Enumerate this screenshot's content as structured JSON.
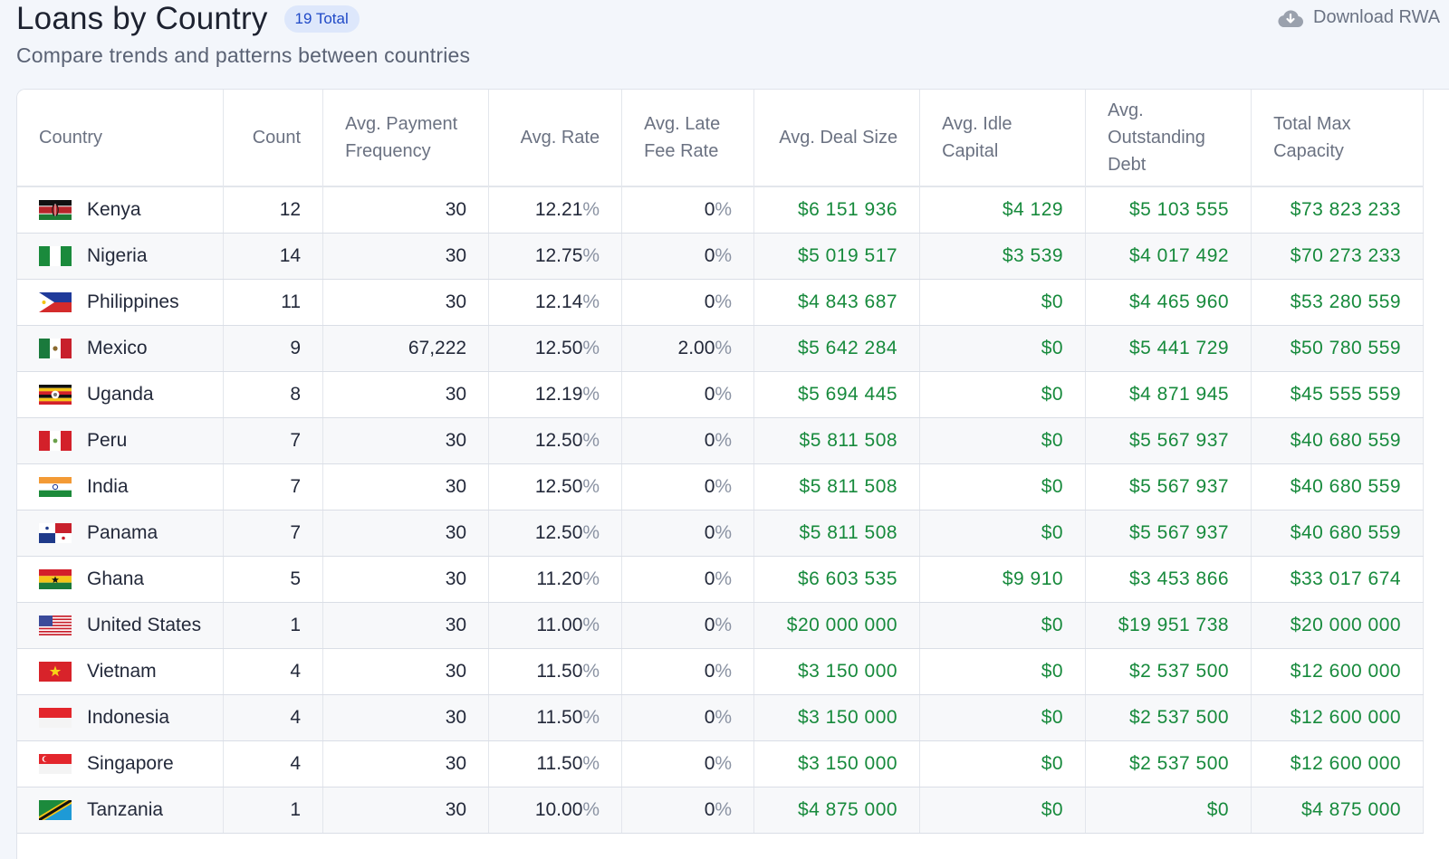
{
  "header": {
    "title": "Loans by Country",
    "total_badge": "19 Total",
    "subtitle": "Compare trends and patterns between countries",
    "download_label": "Download RWA"
  },
  "table": {
    "columns": [
      "Country",
      "Count",
      "Avg. Payment Frequency",
      "Avg. Rate",
      "Avg. Late Fee Rate",
      "Avg. Deal Size",
      "Avg. Idle Capital",
      "Avg. Outstanding Debt",
      "Total Max Capacity"
    ],
    "rows": [
      {
        "country": "Kenya",
        "flag": "kenya-flag-icon",
        "count": "12",
        "freq": "30",
        "rate": "12.21",
        "late": "0",
        "deal": "$6 151 936",
        "idle": "$4 129",
        "debt": "$5 103 555",
        "cap": "$73 823 233"
      },
      {
        "country": "Nigeria",
        "flag": "nigeria-flag-icon",
        "count": "14",
        "freq": "30",
        "rate": "12.75",
        "late": "0",
        "deal": "$5 019 517",
        "idle": "$3 539",
        "debt": "$4 017 492",
        "cap": "$70 273 233"
      },
      {
        "country": "Philippines",
        "flag": "philippines-flag-icon",
        "count": "11",
        "freq": "30",
        "rate": "12.14",
        "late": "0",
        "deal": "$4 843 687",
        "idle": "$0",
        "debt": "$4 465 960",
        "cap": "$53 280 559"
      },
      {
        "country": "Mexico",
        "flag": "mexico-flag-icon",
        "count": "9",
        "freq": "67,222",
        "rate": "12.50",
        "late": "2.00",
        "deal": "$5 642 284",
        "idle": "$0",
        "debt": "$5 441 729",
        "cap": "$50 780 559"
      },
      {
        "country": "Uganda",
        "flag": "uganda-flag-icon",
        "count": "8",
        "freq": "30",
        "rate": "12.19",
        "late": "0",
        "deal": "$5 694 445",
        "idle": "$0",
        "debt": "$4 871 945",
        "cap": "$45 555 559"
      },
      {
        "country": "Peru",
        "flag": "peru-flag-icon",
        "count": "7",
        "freq": "30",
        "rate": "12.50",
        "late": "0",
        "deal": "$5 811 508",
        "idle": "$0",
        "debt": "$5 567 937",
        "cap": "$40 680 559"
      },
      {
        "country": "India",
        "flag": "india-flag-icon",
        "count": "7",
        "freq": "30",
        "rate": "12.50",
        "late": "0",
        "deal": "$5 811 508",
        "idle": "$0",
        "debt": "$5 567 937",
        "cap": "$40 680 559"
      },
      {
        "country": "Panama",
        "flag": "panama-flag-icon",
        "count": "7",
        "freq": "30",
        "rate": "12.50",
        "late": "0",
        "deal": "$5 811 508",
        "idle": "$0",
        "debt": "$5 567 937",
        "cap": "$40 680 559"
      },
      {
        "country": "Ghana",
        "flag": "ghana-flag-icon",
        "count": "5",
        "freq": "30",
        "rate": "11.20",
        "late": "0",
        "deal": "$6 603 535",
        "idle": "$9 910",
        "debt": "$3 453 866",
        "cap": "$33 017 674"
      },
      {
        "country": "United States",
        "flag": "united-states-flag-icon",
        "count": "1",
        "freq": "30",
        "rate": "11.00",
        "late": "0",
        "deal": "$20 000 000",
        "idle": "$0",
        "debt": "$19 951 738",
        "cap": "$20 000 000"
      },
      {
        "country": "Vietnam",
        "flag": "vietnam-flag-icon",
        "count": "4",
        "freq": "30",
        "rate": "11.50",
        "late": "0",
        "deal": "$3 150 000",
        "idle": "$0",
        "debt": "$2 537 500",
        "cap": "$12 600 000"
      },
      {
        "country": "Indonesia",
        "flag": "indonesia-flag-icon",
        "count": "4",
        "freq": "30",
        "rate": "11.50",
        "late": "0",
        "deal": "$3 150 000",
        "idle": "$0",
        "debt": "$2 537 500",
        "cap": "$12 600 000"
      },
      {
        "country": "Singapore",
        "flag": "singapore-flag-icon",
        "count": "4",
        "freq": "30",
        "rate": "11.50",
        "late": "0",
        "deal": "$3 150 000",
        "idle": "$0",
        "debt": "$2 537 500",
        "cap": "$12 600 000"
      },
      {
        "country": "Tanzania",
        "flag": "tanzania-flag-icon",
        "count": "1",
        "freq": "30",
        "rate": "10.00",
        "late": "0",
        "deal": "$4 875 000",
        "idle": "$0",
        "debt": "$0",
        "cap": "$4 875 000"
      }
    ]
  }
}
